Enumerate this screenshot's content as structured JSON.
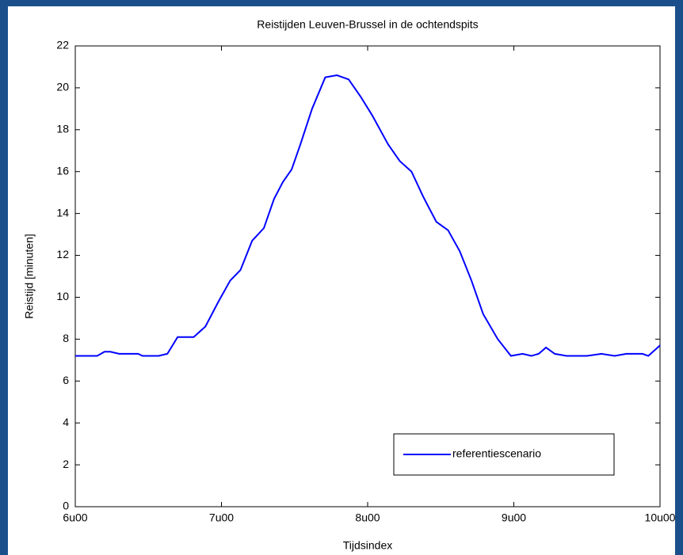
{
  "chart_data": {
    "type": "line",
    "title": "Reistijden Leuven-Brussel in de ochtendspits",
    "xlabel": "Tijdsindex",
    "ylabel": "Reistijd [minuten]",
    "x": [
      6.0,
      6.15,
      6.2,
      6.24,
      6.3,
      6.43,
      6.46,
      6.57,
      6.63,
      6.7,
      6.81,
      6.89,
      6.98,
      7.06,
      7.13,
      7.21,
      7.29,
      7.36,
      7.42,
      7.48,
      7.54,
      7.62,
      7.71,
      7.79,
      7.87,
      7.95,
      8.03,
      8.14,
      8.22,
      8.3,
      8.38,
      8.47,
      8.55,
      8.63,
      8.71,
      8.79,
      8.89,
      8.98,
      9.06,
      9.12,
      9.17,
      9.22,
      9.28,
      9.36,
      9.5,
      9.6,
      9.69,
      9.77,
      9.88,
      9.92,
      10.0
    ],
    "series": [
      {
        "name": "referentiescenario",
        "color": "#0000ff",
        "values": [
          7.2,
          7.2,
          7.4,
          7.4,
          7.3,
          7.3,
          7.2,
          7.2,
          7.3,
          8.1,
          8.1,
          8.6,
          9.8,
          10.8,
          11.3,
          12.7,
          13.3,
          14.7,
          15.5,
          16.1,
          17.3,
          19.0,
          20.5,
          20.6,
          20.4,
          19.6,
          18.7,
          17.3,
          16.5,
          16.0,
          14.8,
          13.6,
          13.2,
          12.2,
          10.8,
          9.2,
          8.0,
          7.2,
          7.3,
          7.2,
          7.3,
          7.6,
          7.3,
          7.2,
          7.2,
          7.3,
          7.2,
          7.3,
          7.3,
          7.2,
          7.7
        ]
      }
    ],
    "xlim": [
      6,
      10
    ],
    "xticks": [
      {
        "value": 6,
        "label": "6u00"
      },
      {
        "value": 7,
        "label": "7u00"
      },
      {
        "value": 8,
        "label": "8u00"
      },
      {
        "value": 9,
        "label": "9u00"
      },
      {
        "value": 10,
        "label": "10u00"
      }
    ],
    "ylim": [
      0,
      22
    ],
    "yticks": [
      0,
      2,
      4,
      6,
      8,
      10,
      12,
      14,
      16,
      18,
      20,
      22
    ],
    "grid": false,
    "legend": "lower right"
  }
}
